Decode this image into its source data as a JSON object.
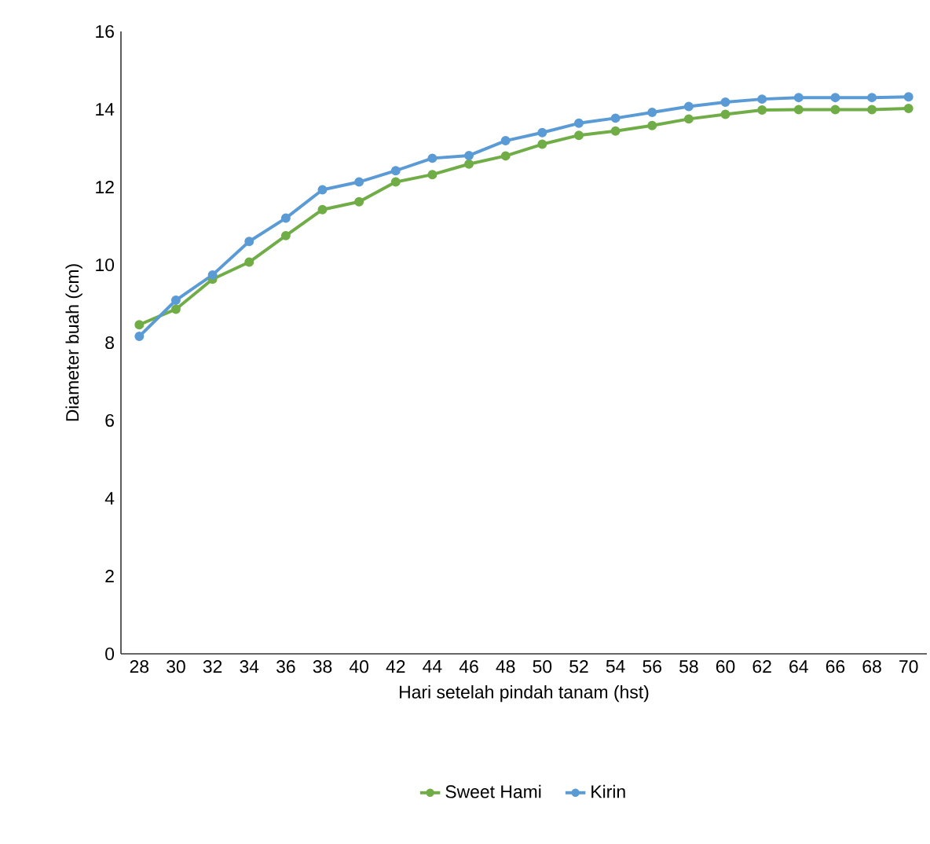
{
  "chart_data": {
    "type": "line",
    "xlabel": "Hari setelah pindah tanam (hst)",
    "ylabel": "Diameter buah (cm)",
    "categories": [
      "28",
      "30",
      "32",
      "34",
      "36",
      "38",
      "40",
      "42",
      "44",
      "46",
      "48",
      "50",
      "52",
      "54",
      "56",
      "58",
      "60",
      "62",
      "64",
      "66",
      "68",
      "70"
    ],
    "series": [
      {
        "name": "Sweet Hami",
        "color": "#70ad47",
        "values": [
          8.46,
          8.86,
          9.63,
          10.07,
          10.75,
          11.42,
          11.62,
          12.13,
          12.32,
          12.59,
          12.8,
          13.1,
          13.33,
          13.44,
          13.58,
          13.75,
          13.87,
          13.98,
          13.99,
          13.99,
          13.99,
          14.02
        ]
      },
      {
        "name": "Kirin",
        "color": "#5b9bd5",
        "values": [
          8.16,
          9.09,
          9.74,
          10.6,
          11.2,
          11.93,
          12.13,
          12.42,
          12.74,
          12.81,
          13.19,
          13.4,
          13.64,
          13.77,
          13.92,
          14.07,
          14.18,
          14.26,
          14.3,
          14.3,
          14.3,
          14.32
        ]
      }
    ],
    "ylim": [
      0,
      16
    ],
    "yticks": [
      0,
      2,
      4,
      6,
      8,
      10,
      12,
      14,
      16
    ],
    "grid": false,
    "legend": "bottom",
    "marker": "circle",
    "line_style": "solid"
  }
}
